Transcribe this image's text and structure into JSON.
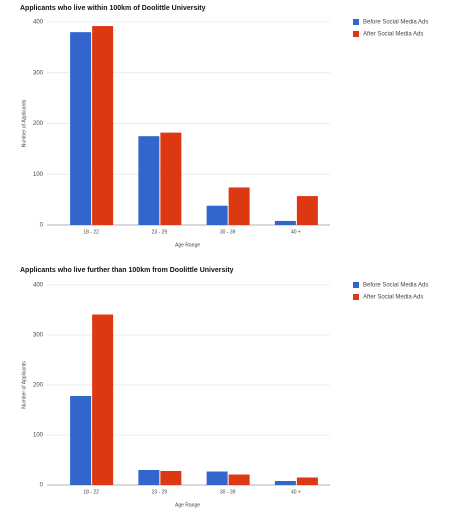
{
  "chart_data": [
    {
      "type": "bar",
      "title": "Applicants who live within 100km of Doolittle University",
      "x_label": "Age Range",
      "y_label": "Number of Applicants",
      "categories": [
        "18 - 22",
        "23 - 29",
        "30 - 39",
        "40 +"
      ],
      "series": [
        {
          "name": "Before Social Media Ads",
          "color": "#3366cc",
          "values": [
            380,
            175,
            38,
            8
          ]
        },
        {
          "name": "After Social Media Ads",
          "color": "#dc3912",
          "values": [
            392,
            182,
            74,
            57
          ]
        }
      ],
      "ylim": [
        0,
        400
      ],
      "yticks": [
        0,
        100,
        200,
        300,
        400
      ],
      "grid": true,
      "legend": "right"
    },
    {
      "type": "bar",
      "title": "Applicants who live further than 100km from Doolittle University",
      "x_label": "Age Range",
      "y_label": "Number of Applicants",
      "categories": [
        "18 - 22",
        "23 - 29",
        "30 - 39",
        "40 +"
      ],
      "series": [
        {
          "name": "Before Social Media Ads",
          "color": "#3366cc",
          "values": [
            178,
            30,
            27,
            8
          ]
        },
        {
          "name": "After Social Media Ads",
          "color": "#dc3912",
          "values": [
            341,
            28,
            21,
            15
          ]
        }
      ],
      "ylim": [
        0,
        400
      ],
      "yticks": [
        0,
        100,
        200,
        300,
        400
      ],
      "grid": true,
      "legend": "right"
    }
  ]
}
